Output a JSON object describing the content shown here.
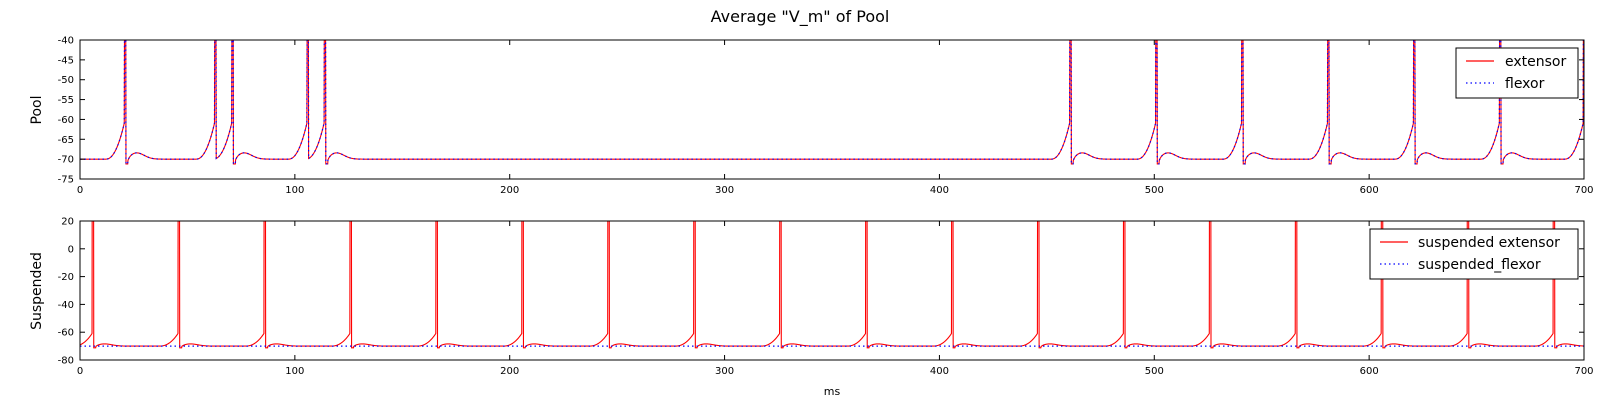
{
  "figure": {
    "title": "Average \"V_m\" of Pool",
    "xlabel": "ms"
  },
  "chart_data": [
    {
      "type": "line",
      "ylabel": "Pool",
      "xlim": [
        0,
        700
      ],
      "ylim": [
        -75,
        -40
      ],
      "xticks": [
        0,
        100,
        200,
        300,
        400,
        500,
        600,
        700
      ],
      "yticks": [
        -75,
        -70,
        -65,
        -60,
        -55,
        -50,
        -45,
        -40
      ],
      "legend_position": "top-right",
      "spike_times": [
        21,
        63,
        71,
        106,
        114,
        461,
        501,
        541,
        581,
        621,
        661,
        700
      ],
      "rest": -70,
      "peak": -40,
      "series": [
        {
          "name": "extensor",
          "color": "#ff0000",
          "style": "solid"
        },
        {
          "name": "flexor",
          "color": "#0000ff",
          "style": "dotted"
        }
      ]
    },
    {
      "type": "line",
      "ylabel": "Suspended",
      "xlim": [
        0,
        700
      ],
      "ylim": [
        -80,
        20
      ],
      "xticks": [
        0,
        100,
        200,
        300,
        400,
        500,
        600,
        700
      ],
      "yticks": [
        -80,
        -60,
        -40,
        -20,
        0,
        20
      ],
      "legend_position": "top-right",
      "spike_times": [
        6,
        46,
        86,
        126,
        166,
        206,
        246,
        286,
        326,
        366,
        406,
        446,
        486,
        526,
        566,
        606,
        646,
        686
      ],
      "rest": -70,
      "series": [
        {
          "name": "suspended extensor",
          "color": "#ff0000",
          "style": "solid"
        },
        {
          "name": "suspended_flexor",
          "color": "#0000ff",
          "style": "dotted",
          "constant": -70
        }
      ]
    }
  ]
}
